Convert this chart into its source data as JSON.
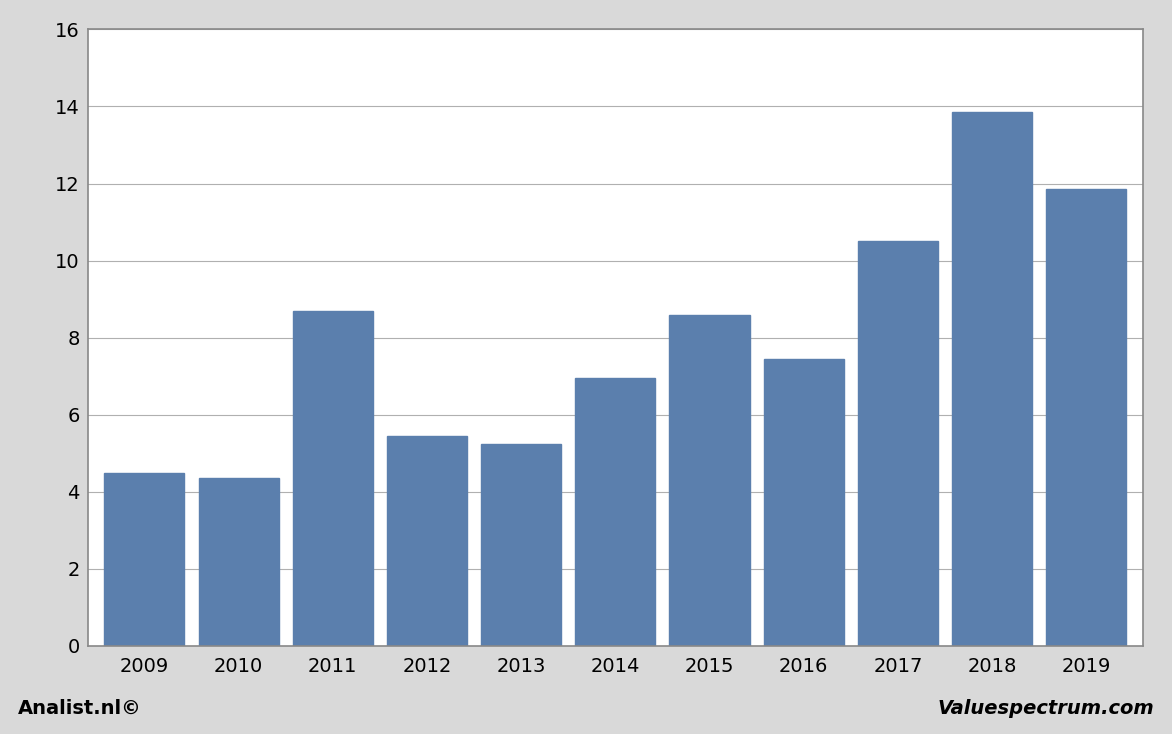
{
  "categories": [
    "2009",
    "2010",
    "2011",
    "2012",
    "2013",
    "2014",
    "2015",
    "2016",
    "2017",
    "2018",
    "2019"
  ],
  "values": [
    4.5,
    4.35,
    8.7,
    5.45,
    5.25,
    6.95,
    8.6,
    7.45,
    10.5,
    13.85,
    11.85
  ],
  "bar_color": "#5b7fad",
  "ylim": [
    0,
    16
  ],
  "yticks": [
    0,
    2,
    4,
    6,
    8,
    10,
    12,
    14,
    16
  ],
  "figure_bg_color": "#d9d9d9",
  "plot_bg_color": "#ffffff",
  "grid_color": "#b0b0b0",
  "border_color": "#888888",
  "footer_left": "Analist.nl©",
  "footer_right": "Valuespectrum.com",
  "footer_fontsize": 14,
  "bar_width": 0.85
}
